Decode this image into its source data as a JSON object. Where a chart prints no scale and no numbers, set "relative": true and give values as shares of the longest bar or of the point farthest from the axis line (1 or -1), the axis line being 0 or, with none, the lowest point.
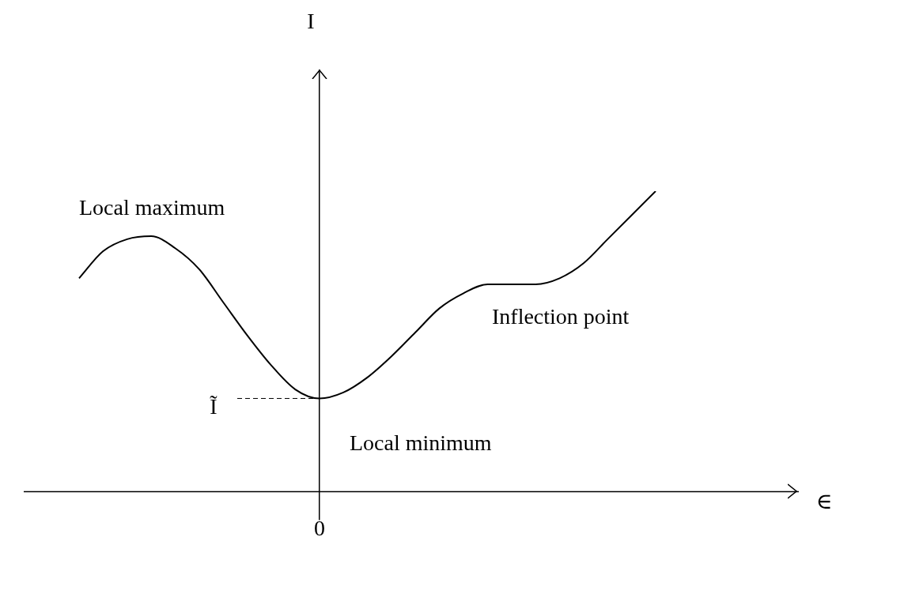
{
  "chart_data": {
    "type": "line",
    "relative": true,
    "categories": [
      null,
      null,
      null,
      null,
      null,
      null,
      null,
      null,
      null,
      null,
      null,
      null,
      null,
      null,
      null,
      null,
      null,
      null,
      null,
      null,
      null,
      null,
      null,
      null,
      null
    ],
    "series": [
      {
        "color": "#000000",
        "values": [
          0.71,
          0.8,
          0.84,
          0.85,
          0.81,
          0.74,
          0.63,
          0.52,
          0.42,
          0.34,
          0.31,
          0.33,
          0.38,
          0.45,
          0.53,
          0.61,
          0.66,
          0.69,
          0.69,
          0.69,
          0.71,
          0.76,
          0.84,
          0.92,
          1.0
        ]
      }
    ],
    "ref_lines": [
      {
        "axis": "y",
        "value": 0.31,
        "label": "Ĩ",
        "line_style": "dashed"
      }
    ],
    "annotations": [
      "Local maximum",
      "Inflection point",
      "Local minimum",
      "0",
      "I",
      "∈"
    ],
    "marker": "none",
    "line_style": "solid",
    "grid": false,
    "legend": false
  }
}
